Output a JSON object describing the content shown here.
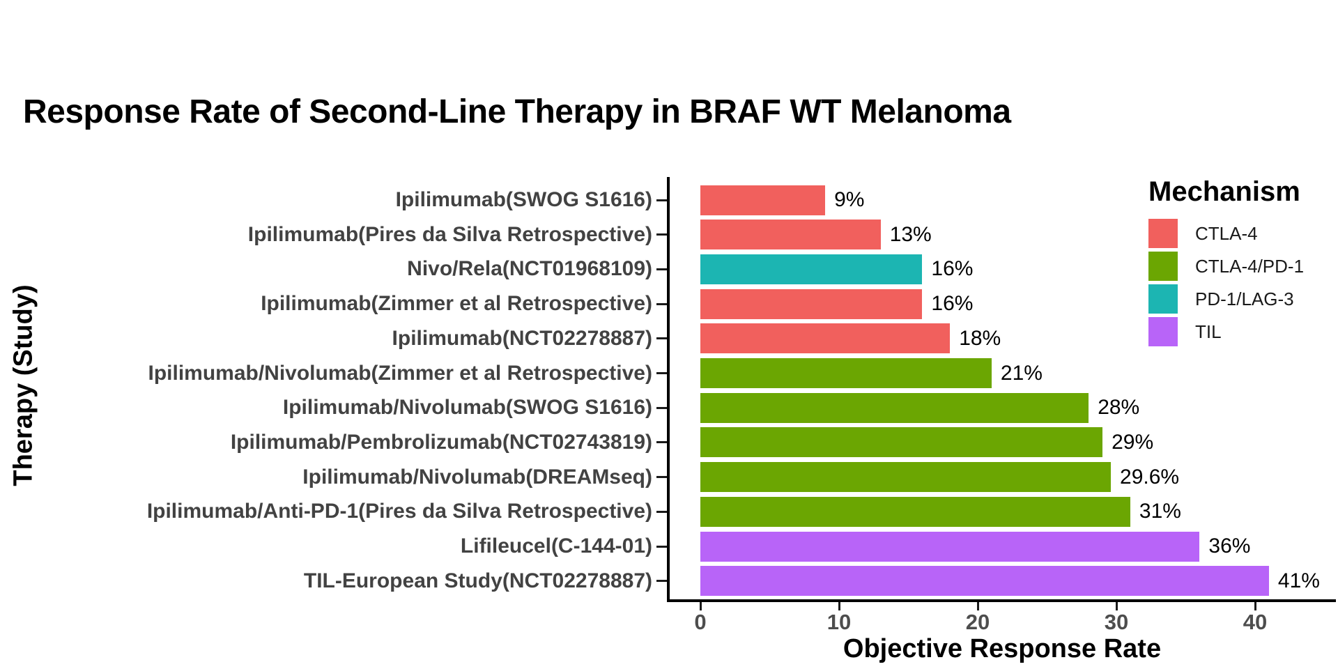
{
  "title": "Response Rate of Second-Line Therapy in BRAF WT Melanoma",
  "chart_data": {
    "type": "bar",
    "orientation": "horizontal",
    "title": "Response Rate of Second-Line Therapy in BRAF WT Melanoma",
    "xlabel": "Objective Response Rate",
    "ylabel": "Therapy (Study)",
    "x_ticks": [
      0,
      10,
      20,
      30,
      40
    ],
    "xlim": [
      0,
      46
    ],
    "grid": "off",
    "legend_position": "inside-top-right",
    "legend_title": "Mechanism",
    "legend": [
      {
        "label": "CTLA-4",
        "color": "#F1605D"
      },
      {
        "label": "CTLA-4/PD-1",
        "color": "#6BA602"
      },
      {
        "label": "PD-1/LAG-3",
        "color": "#1CB5B2"
      },
      {
        "label": "TIL",
        "color": "#B864F8"
      }
    ],
    "bars": [
      {
        "therapy": "Ipilimumab(SWOG S1616)",
        "value": 9,
        "label": "9%",
        "mechanism": "CTLA-4"
      },
      {
        "therapy": "Ipilimumab(Pires da Silva Retrospective)",
        "value": 13,
        "label": "13%",
        "mechanism": "CTLA-4"
      },
      {
        "therapy": "Nivo/Rela(NCT01968109)",
        "value": 16,
        "label": "16%",
        "mechanism": "PD-1/LAG-3"
      },
      {
        "therapy": "Ipilimumab(Zimmer et al Retrospective)",
        "value": 16,
        "label": "16%",
        "mechanism": "CTLA-4"
      },
      {
        "therapy": "Ipilimumab(NCT02278887)",
        "value": 18,
        "label": "18%",
        "mechanism": "CTLA-4"
      },
      {
        "therapy": "Ipilimumab/Nivolumab(Zimmer et al Retrospective)",
        "value": 21,
        "label": "21%",
        "mechanism": "CTLA-4/PD-1"
      },
      {
        "therapy": "Ipilimumab/Nivolumab(SWOG S1616)",
        "value": 28,
        "label": "28%",
        "mechanism": "CTLA-4/PD-1"
      },
      {
        "therapy": "Ipilimumab/Pembrolizumab(NCT02743819)",
        "value": 29,
        "label": "29%",
        "mechanism": "CTLA-4/PD-1"
      },
      {
        "therapy": "Ipilimumab/Nivolumab(DREAMseq)",
        "value": 29.6,
        "label": "29.6%",
        "mechanism": "CTLA-4/PD-1"
      },
      {
        "therapy": "Ipilimumab/Anti-PD-1(Pires da Silva Retrospective)",
        "value": 31,
        "label": "31%",
        "mechanism": "CTLA-4/PD-1"
      },
      {
        "therapy": "Lifileucel(C-144-01)",
        "value": 36,
        "label": "36%",
        "mechanism": "TIL"
      },
      {
        "therapy": "TIL-European Study(NCT02278887)",
        "value": 41,
        "label": "41%",
        "mechanism": "TIL"
      }
    ]
  }
}
